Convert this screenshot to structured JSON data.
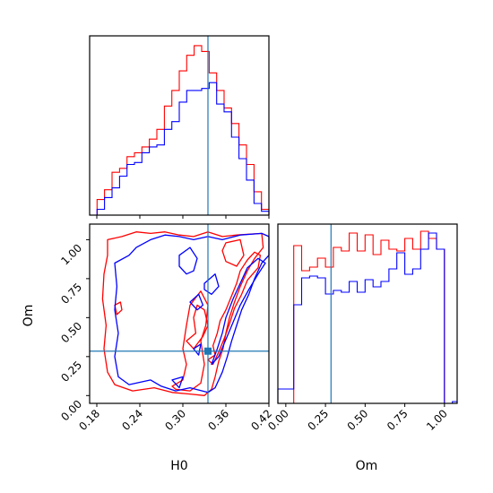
{
  "colors": {
    "series_a": "#ff0000",
    "series_b": "#0000ff",
    "truth": "#1f77b4"
  },
  "chart_data": {
    "type": "corner",
    "parameters": [
      "H0",
      "Om"
    ],
    "truth": {
      "H0": 0.335,
      "Om": 0.285
    },
    "series": [
      {
        "color": "#ff0000"
      },
      {
        "color": "#0000ff"
      }
    ],
    "panels": [
      {
        "id": "hist-H0",
        "type": "histogram",
        "x": "H0",
        "xlim": [
          0.17,
          0.42
        ],
        "bin_edges": [
          0.17,
          0.1804,
          0.1908,
          0.2013,
          0.2117,
          0.2221,
          0.2325,
          0.2429,
          0.2533,
          0.2638,
          0.2742,
          0.2846,
          0.295,
          0.3054,
          0.3158,
          0.3263,
          0.3367,
          0.3471,
          0.3575,
          0.3679,
          0.3783,
          0.3888,
          0.3992,
          0.4096,
          0.42
        ],
        "series_values": [
          [
            0,
            8,
            13,
            22,
            24,
            30,
            32,
            35,
            39,
            44,
            56,
            64,
            74,
            82,
            87,
            84,
            73,
            64,
            55,
            47,
            36,
            26,
            12,
            3
          ],
          [
            0,
            3,
            9,
            14,
            20,
            26,
            27,
            32,
            35,
            36,
            44,
            48,
            58,
            64,
            64,
            65,
            68,
            57,
            53,
            40,
            29,
            18,
            6,
            2
          ]
        ],
        "ylim": [
          0,
          92
        ],
        "ticks_labeled": false
      },
      {
        "id": "contour-H0-Om",
        "type": "contour",
        "x": "H0",
        "y": "Om",
        "xlim": [
          0.17,
          0.42
        ],
        "ylim": [
          -0.05,
          1.1
        ],
        "xticks": [
          "0.18",
          "0.24",
          "0.30",
          "0.36",
          "0.42"
        ],
        "xtick_values": [
          0.18,
          0.24,
          0.3,
          0.36,
          0.42
        ],
        "yticks": [
          "0.00",
          "0.25",
          "0.50",
          "0.75",
          "1.00"
        ],
        "ytick_values": [
          0.0,
          0.25,
          0.5,
          0.75,
          1.0
        ],
        "xlabel": "H0",
        "ylabel": "Om",
        "series_contours": [
          [
            [
              [
                0.195,
                1.0
              ],
              [
                0.215,
                1.02
              ],
              [
                0.235,
                1.05
              ],
              [
                0.255,
                1.04
              ],
              [
                0.275,
                1.05
              ],
              [
                0.295,
                1.03
              ],
              [
                0.315,
                1.02
              ],
              [
                0.335,
                1.05
              ],
              [
                0.355,
                1.02
              ],
              [
                0.375,
                1.03
              ],
              [
                0.41,
                1.04
              ],
              [
                0.412,
                0.95
              ],
              [
                0.4,
                0.88
              ],
              [
                0.39,
                0.8
              ],
              [
                0.38,
                0.7
              ],
              [
                0.372,
                0.6
              ],
              [
                0.365,
                0.5
              ],
              [
                0.36,
                0.4
              ],
              [
                0.356,
                0.3
              ],
              [
                0.35,
                0.22
              ],
              [
                0.345,
                0.12
              ],
              [
                0.34,
                0.04
              ],
              [
                0.33,
                0.0
              ],
              [
                0.31,
                0.01
              ],
              [
                0.285,
                0.02
              ],
              [
                0.26,
                0.05
              ],
              [
                0.23,
                0.03
              ],
              [
                0.205,
                0.07
              ],
              [
                0.195,
                0.15
              ],
              [
                0.19,
                0.3
              ],
              [
                0.193,
                0.45
              ],
              [
                0.188,
                0.62
              ],
              [
                0.19,
                0.78
              ],
              [
                0.195,
                0.9
              ],
              [
                0.195,
                1.0
              ]
            ],
            [
              [
                0.285,
                0.06
              ],
              [
                0.3,
                0.1
              ],
              [
                0.305,
                0.2
              ],
              [
                0.3,
                0.3
              ],
              [
                0.305,
                0.45
              ],
              [
                0.31,
                0.58
              ],
              [
                0.325,
                0.67
              ],
              [
                0.335,
                0.58
              ],
              [
                0.332,
                0.45
              ],
              [
                0.325,
                0.35
              ],
              [
                0.33,
                0.2
              ],
              [
                0.325,
                0.08
              ],
              [
                0.31,
                0.03
              ],
              [
                0.29,
                0.04
              ],
              [
                0.285,
                0.06
              ]
            ],
            [
              [
                0.305,
                0.35
              ],
              [
                0.318,
                0.4
              ],
              [
                0.315,
                0.5
              ],
              [
                0.32,
                0.58
              ],
              [
                0.33,
                0.55
              ],
              [
                0.335,
                0.45
              ],
              [
                0.328,
                0.38
              ],
              [
                0.315,
                0.3
              ],
              [
                0.305,
                0.35
              ]
            ],
            [
              [
                0.36,
                0.98
              ],
              [
                0.38,
                1.0
              ],
              [
                0.385,
                0.9
              ],
              [
                0.375,
                0.83
              ],
              [
                0.36,
                0.86
              ],
              [
                0.355,
                0.93
              ],
              [
                0.36,
                0.98
              ]
            ],
            [
              [
                0.205,
                0.58
              ],
              [
                0.213,
                0.6
              ],
              [
                0.215,
                0.55
              ],
              [
                0.208,
                0.52
              ],
              [
                0.205,
                0.58
              ]
            ],
            [
              [
                0.335,
                0.23
              ],
              [
                0.345,
                0.26
              ],
              [
                0.342,
                0.32
              ],
              [
                0.348,
                0.4
              ],
              [
                0.352,
                0.48
              ],
              [
                0.36,
                0.55
              ],
              [
                0.368,
                0.64
              ],
              [
                0.375,
                0.72
              ],
              [
                0.38,
                0.8
              ],
              [
                0.39,
                0.87
              ],
              [
                0.4,
                0.92
              ],
              [
                0.408,
                0.9
              ],
              [
                0.405,
                0.82
              ],
              [
                0.39,
                0.74
              ],
              [
                0.382,
                0.65
              ],
              [
                0.372,
                0.56
              ],
              [
                0.365,
                0.46
              ],
              [
                0.358,
                0.37
              ],
              [
                0.35,
                0.28
              ],
              [
                0.342,
                0.2
              ],
              [
                0.335,
                0.23
              ]
            ]
          ],
          [
            [
              [
                0.205,
                0.85
              ],
              [
                0.225,
                0.9
              ],
              [
                0.235,
                0.95
              ],
              [
                0.255,
                1.0
              ],
              [
                0.275,
                1.03
              ],
              [
                0.295,
                1.02
              ],
              [
                0.315,
                1.0
              ],
              [
                0.335,
                1.02
              ],
              [
                0.355,
                1.0
              ],
              [
                0.38,
                1.03
              ],
              [
                0.41,
                1.04
              ],
              [
                0.42,
                1.02
              ],
              [
                0.42,
                0.9
              ],
              [
                0.41,
                0.85
              ],
              [
                0.4,
                0.75
              ],
              [
                0.392,
                0.65
              ],
              [
                0.382,
                0.55
              ],
              [
                0.375,
                0.45
              ],
              [
                0.368,
                0.35
              ],
              [
                0.362,
                0.25
              ],
              [
                0.355,
                0.15
              ],
              [
                0.345,
                0.05
              ],
              [
                0.335,
                0.02
              ],
              [
                0.31,
                0.05
              ],
              [
                0.29,
                0.03
              ],
              [
                0.27,
                0.06
              ],
              [
                0.255,
                0.1
              ],
              [
                0.225,
                0.07
              ],
              [
                0.21,
                0.12
              ],
              [
                0.205,
                0.25
              ],
              [
                0.21,
                0.4
              ],
              [
                0.205,
                0.55
              ],
              [
                0.208,
                0.7
              ],
              [
                0.205,
                0.85
              ]
            ],
            [
              [
                0.295,
                0.9
              ],
              [
                0.31,
                0.95
              ],
              [
                0.32,
                0.88
              ],
              [
                0.315,
                0.8
              ],
              [
                0.305,
                0.78
              ],
              [
                0.295,
                0.83
              ],
              [
                0.295,
                0.9
              ]
            ],
            [
              [
                0.33,
                0.72
              ],
              [
                0.345,
                0.78
              ],
              [
                0.35,
                0.7
              ],
              [
                0.34,
                0.65
              ],
              [
                0.33,
                0.68
              ],
              [
                0.33,
                0.72
              ]
            ],
            [
              [
                0.31,
                0.6
              ],
              [
                0.322,
                0.65
              ],
              [
                0.328,
                0.58
              ],
              [
                0.32,
                0.55
              ],
              [
                0.31,
                0.6
              ]
            ],
            [
              [
                0.315,
                0.3
              ],
              [
                0.325,
                0.33
              ],
              [
                0.322,
                0.26
              ],
              [
                0.315,
                0.3
              ]
            ],
            [
              [
                0.285,
                0.1
              ],
              [
                0.3,
                0.12
              ],
              [
                0.295,
                0.05
              ],
              [
                0.285,
                0.1
              ]
            ],
            [
              [
                0.34,
                0.2
              ],
              [
                0.348,
                0.3
              ],
              [
                0.355,
                0.4
              ],
              [
                0.36,
                0.5
              ],
              [
                0.37,
                0.62
              ],
              [
                0.38,
                0.72
              ],
              [
                0.39,
                0.82
              ],
              [
                0.405,
                0.88
              ],
              [
                0.415,
                0.85
              ],
              [
                0.405,
                0.78
              ],
              [
                0.392,
                0.68
              ],
              [
                0.38,
                0.58
              ],
              [
                0.37,
                0.47
              ],
              [
                0.36,
                0.36
              ],
              [
                0.35,
                0.25
              ],
              [
                0.34,
                0.2
              ]
            ]
          ]
        ],
        "truth_marker": true
      },
      {
        "id": "hist-Om",
        "type": "histogram",
        "x": "Om",
        "xlim": [
          -0.05,
          1.08
        ],
        "bin_edges": [
          -0.05,
          0.0,
          0.05,
          0.1,
          0.15,
          0.2,
          0.25,
          0.3,
          0.35,
          0.4,
          0.45,
          0.5,
          0.55,
          0.6,
          0.65,
          0.7,
          0.75,
          0.8,
          0.85,
          0.9,
          0.95,
          1.0,
          1.05,
          1.08
        ],
        "series_values": [
          [
            0,
            0,
            88,
            74,
            76,
            81,
            76,
            87,
            85,
            95,
            85,
            94,
            83,
            91,
            86,
            85,
            92,
            86,
            96,
            92,
            86,
            0,
            0
          ],
          [
            8,
            8,
            55,
            70,
            71,
            70,
            61,
            63,
            62,
            68,
            62,
            69,
            65,
            68,
            75,
            84,
            72,
            75,
            86,
            95,
            86,
            0,
            1
          ]
        ],
        "ylim": [
          0,
          100
        ],
        "xticks": [
          "0.00",
          "0.25",
          "0.50",
          "0.75",
          "1.00"
        ],
        "xtick_values": [
          0.0,
          0.25,
          0.5,
          0.75,
          1.0
        ],
        "xlabel": "Om"
      }
    ]
  }
}
